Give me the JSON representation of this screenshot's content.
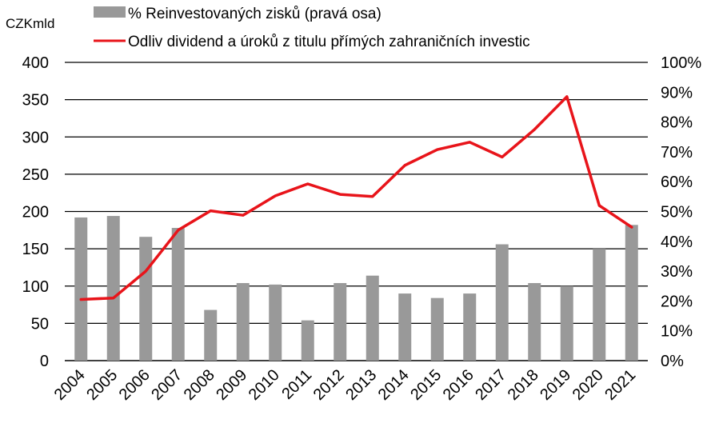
{
  "chart_data": {
    "type": "bar+line",
    "unit_label": "CZKmld",
    "categories": [
      "2004",
      "2005",
      "2006",
      "2007",
      "2008",
      "2009",
      "2010",
      "2011",
      "2012",
      "2013",
      "2014",
      "2015",
      "2016",
      "2017",
      "2018",
      "2019",
      "2020",
      "2021"
    ],
    "series": [
      {
        "name": "% Reinvestovaných zisků (pravá osa)",
        "type": "bar",
        "axis": "right",
        "color": "#999999",
        "values": [
          48,
          48.5,
          41.5,
          44.5,
          17,
          26,
          25.5,
          13.5,
          26,
          28.5,
          22.5,
          21,
          22.5,
          39,
          26,
          25,
          37.5,
          45.5
        ]
      },
      {
        "name": "Odliv dividend a úroků z titulu přímých zahraničních investic",
        "type": "line",
        "axis": "left",
        "color": "#e8141a",
        "values": [
          82,
          84,
          120,
          175,
          201,
          195,
          221,
          237,
          223,
          220,
          262,
          283,
          293,
          273,
          310,
          354,
          208,
          179
        ]
      }
    ],
    "y_left": {
      "min": 0,
      "max": 400,
      "ticks": [
        "0",
        "50",
        "100",
        "150",
        "200",
        "250",
        "300",
        "350",
        "400"
      ]
    },
    "y_right": {
      "min": 0,
      "max": 100,
      "ticks": [
        "0%",
        "10%",
        "20%",
        "30%",
        "40%",
        "50%",
        "60%",
        "70%",
        "80%",
        "90%",
        "100%"
      ]
    },
    "grid": "horizontal",
    "legend_position": "top"
  }
}
